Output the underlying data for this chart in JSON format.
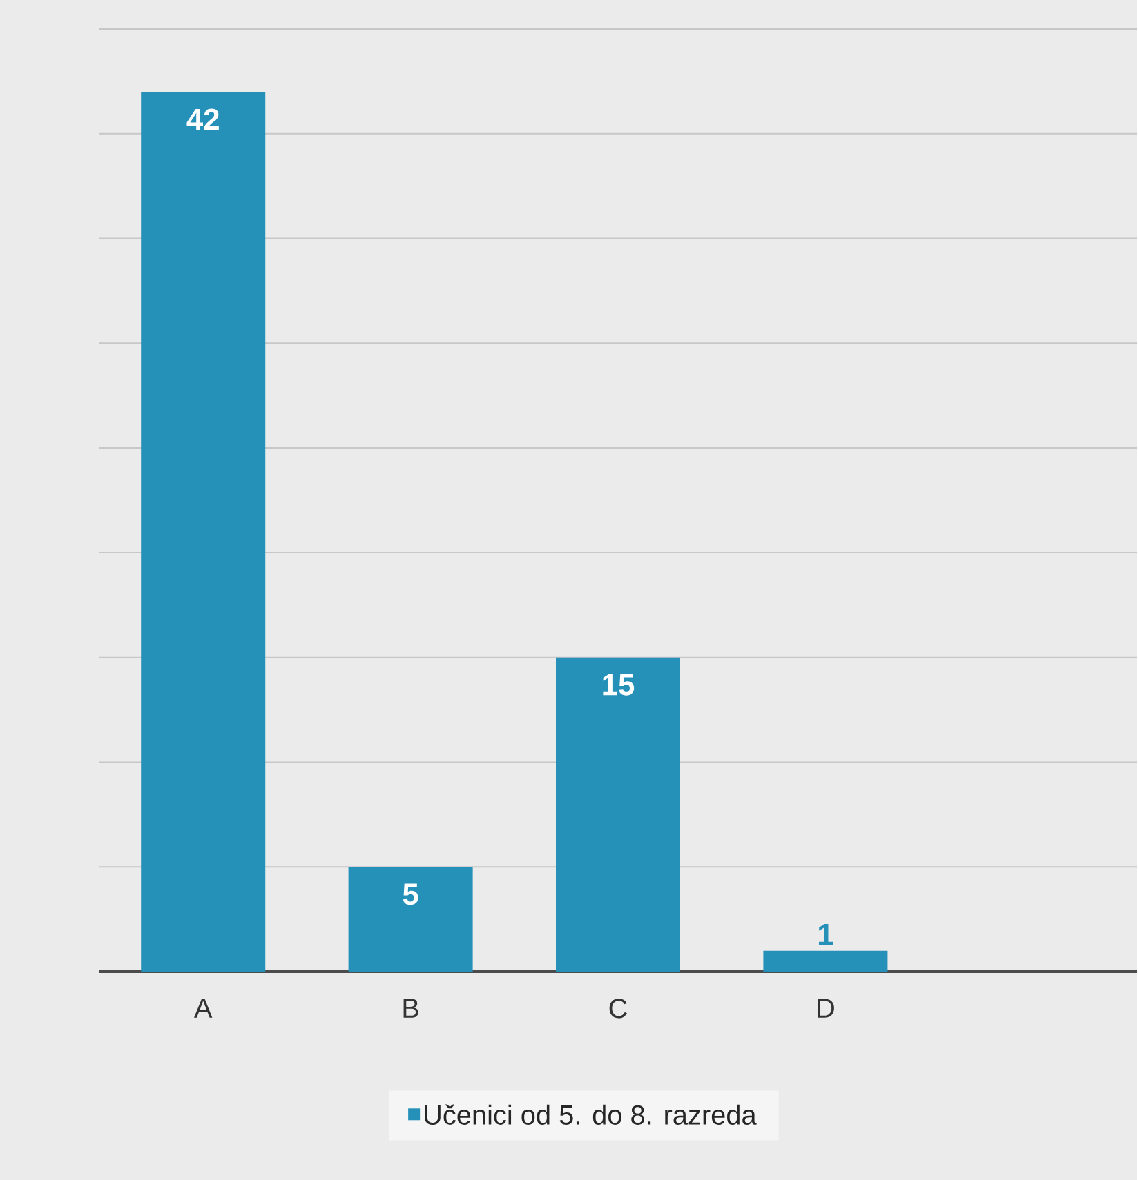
{
  "chart_data": {
    "type": "bar",
    "categories": [
      "A",
      "B",
      "C",
      "D",
      null
    ],
    "series": [
      {
        "name": "Učenici od 5. do 8. razreda",
        "color": "#2590b8",
        "values": [
          42,
          5,
          15,
          1,
          null
        ]
      }
    ],
    "ylim": [
      0,
      45
    ],
    "yticks": [
      {
        "value": 0,
        "label": null
      },
      {
        "value": 5,
        "label": null
      },
      {
        "value": 10,
        "label": null
      },
      {
        "value": 15,
        "label": null
      },
      {
        "value": 20,
        "label": null
      },
      {
        "value": 25,
        "label": null
      },
      {
        "value": 30,
        "label": null
      },
      {
        "value": 35,
        "label": null
      },
      {
        "value": 40,
        "label": null
      },
      {
        "value": 45,
        "label": null
      }
    ],
    "tick_labels": "x",
    "grid": "y",
    "data_labels": true,
    "legend": "bottom"
  }
}
